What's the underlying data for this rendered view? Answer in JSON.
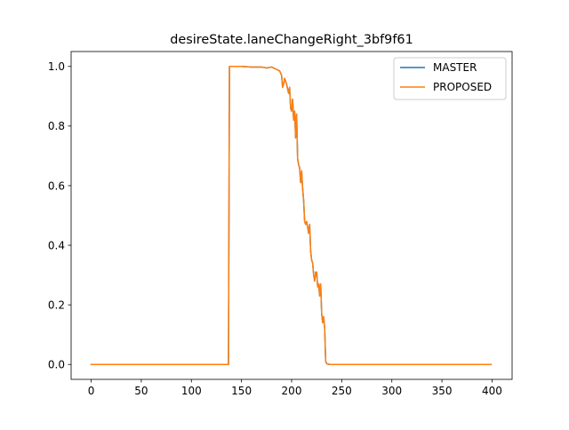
{
  "chart_data": {
    "type": "line",
    "title": "desireState.laneChangeRight_3bf9f61",
    "xlabel": "",
    "ylabel": "",
    "xlim": [
      -20,
      420
    ],
    "ylim": [
      -0.05,
      1.05
    ],
    "xticks": [
      0,
      50,
      100,
      150,
      200,
      250,
      300,
      350,
      400
    ],
    "xtick_labels": [
      "0",
      "50",
      "100",
      "150",
      "200",
      "250",
      "300",
      "350",
      "400"
    ],
    "yticks": [
      0.0,
      0.2,
      0.4,
      0.6,
      0.8,
      1.0
    ],
    "ytick_labels": [
      "0.0",
      "0.2",
      "0.4",
      "0.6",
      "0.8",
      "1.0"
    ],
    "grid": false,
    "legend_position": "upper right",
    "series": [
      {
        "name": "MASTER",
        "color": "#1f77b4",
        "x": [
          0,
          137,
          138,
          150,
          160,
          170,
          175,
          180,
          185,
          188,
          190,
          191,
          192,
          193,
          195,
          197,
          198,
          199,
          200,
          201,
          202,
          203,
          204,
          205,
          206,
          207,
          208,
          209,
          210,
          211,
          212,
          213,
          214,
          215,
          216,
          217,
          218,
          219,
          220,
          221,
          222,
          223,
          224,
          225,
          226,
          227,
          228,
          229,
          230,
          231,
          232,
          233,
          234,
          235,
          236,
          237,
          238,
          239,
          240,
          245,
          250,
          300,
          350,
          399
        ],
        "y": [
          0.0,
          0.0,
          1.0,
          1.0,
          0.998,
          0.998,
          0.995,
          0.998,
          0.99,
          0.985,
          0.97,
          0.93,
          0.94,
          0.96,
          0.94,
          0.91,
          0.93,
          0.86,
          0.85,
          0.89,
          0.82,
          0.85,
          0.76,
          0.84,
          0.69,
          0.67,
          0.66,
          0.61,
          0.65,
          0.59,
          0.55,
          0.48,
          0.47,
          0.48,
          0.46,
          0.44,
          0.47,
          0.38,
          0.35,
          0.34,
          0.3,
          0.28,
          0.31,
          0.31,
          0.26,
          0.27,
          0.23,
          0.27,
          0.17,
          0.14,
          0.16,
          0.12,
          0.01,
          0.003,
          0.001,
          0.001,
          0.0,
          0.0,
          0.0,
          0.0,
          0.0,
          0.0,
          0.0,
          0.0
        ]
      },
      {
        "name": "PROPOSED",
        "color": "#ff7f0e",
        "x": [
          0,
          137,
          138,
          150,
          160,
          170,
          175,
          180,
          185,
          188,
          190,
          191,
          192,
          193,
          195,
          197,
          198,
          199,
          200,
          201,
          202,
          203,
          204,
          205,
          206,
          207,
          208,
          209,
          210,
          211,
          212,
          213,
          214,
          215,
          216,
          217,
          218,
          219,
          220,
          221,
          222,
          223,
          224,
          225,
          226,
          227,
          228,
          229,
          230,
          231,
          232,
          233,
          234,
          235,
          236,
          237,
          238,
          239,
          240,
          245,
          250,
          300,
          350,
          399
        ],
        "y": [
          0.0,
          0.0,
          1.0,
          1.0,
          0.998,
          0.998,
          0.995,
          0.998,
          0.99,
          0.985,
          0.97,
          0.93,
          0.94,
          0.96,
          0.94,
          0.91,
          0.93,
          0.86,
          0.85,
          0.89,
          0.82,
          0.85,
          0.76,
          0.84,
          0.69,
          0.67,
          0.66,
          0.61,
          0.65,
          0.59,
          0.55,
          0.48,
          0.47,
          0.48,
          0.46,
          0.44,
          0.47,
          0.38,
          0.35,
          0.34,
          0.3,
          0.28,
          0.31,
          0.31,
          0.26,
          0.27,
          0.23,
          0.27,
          0.17,
          0.14,
          0.16,
          0.12,
          0.01,
          0.003,
          0.001,
          0.001,
          0.0,
          0.0,
          0.0,
          0.0,
          0.0,
          0.0,
          0.0,
          0.0
        ]
      }
    ]
  }
}
